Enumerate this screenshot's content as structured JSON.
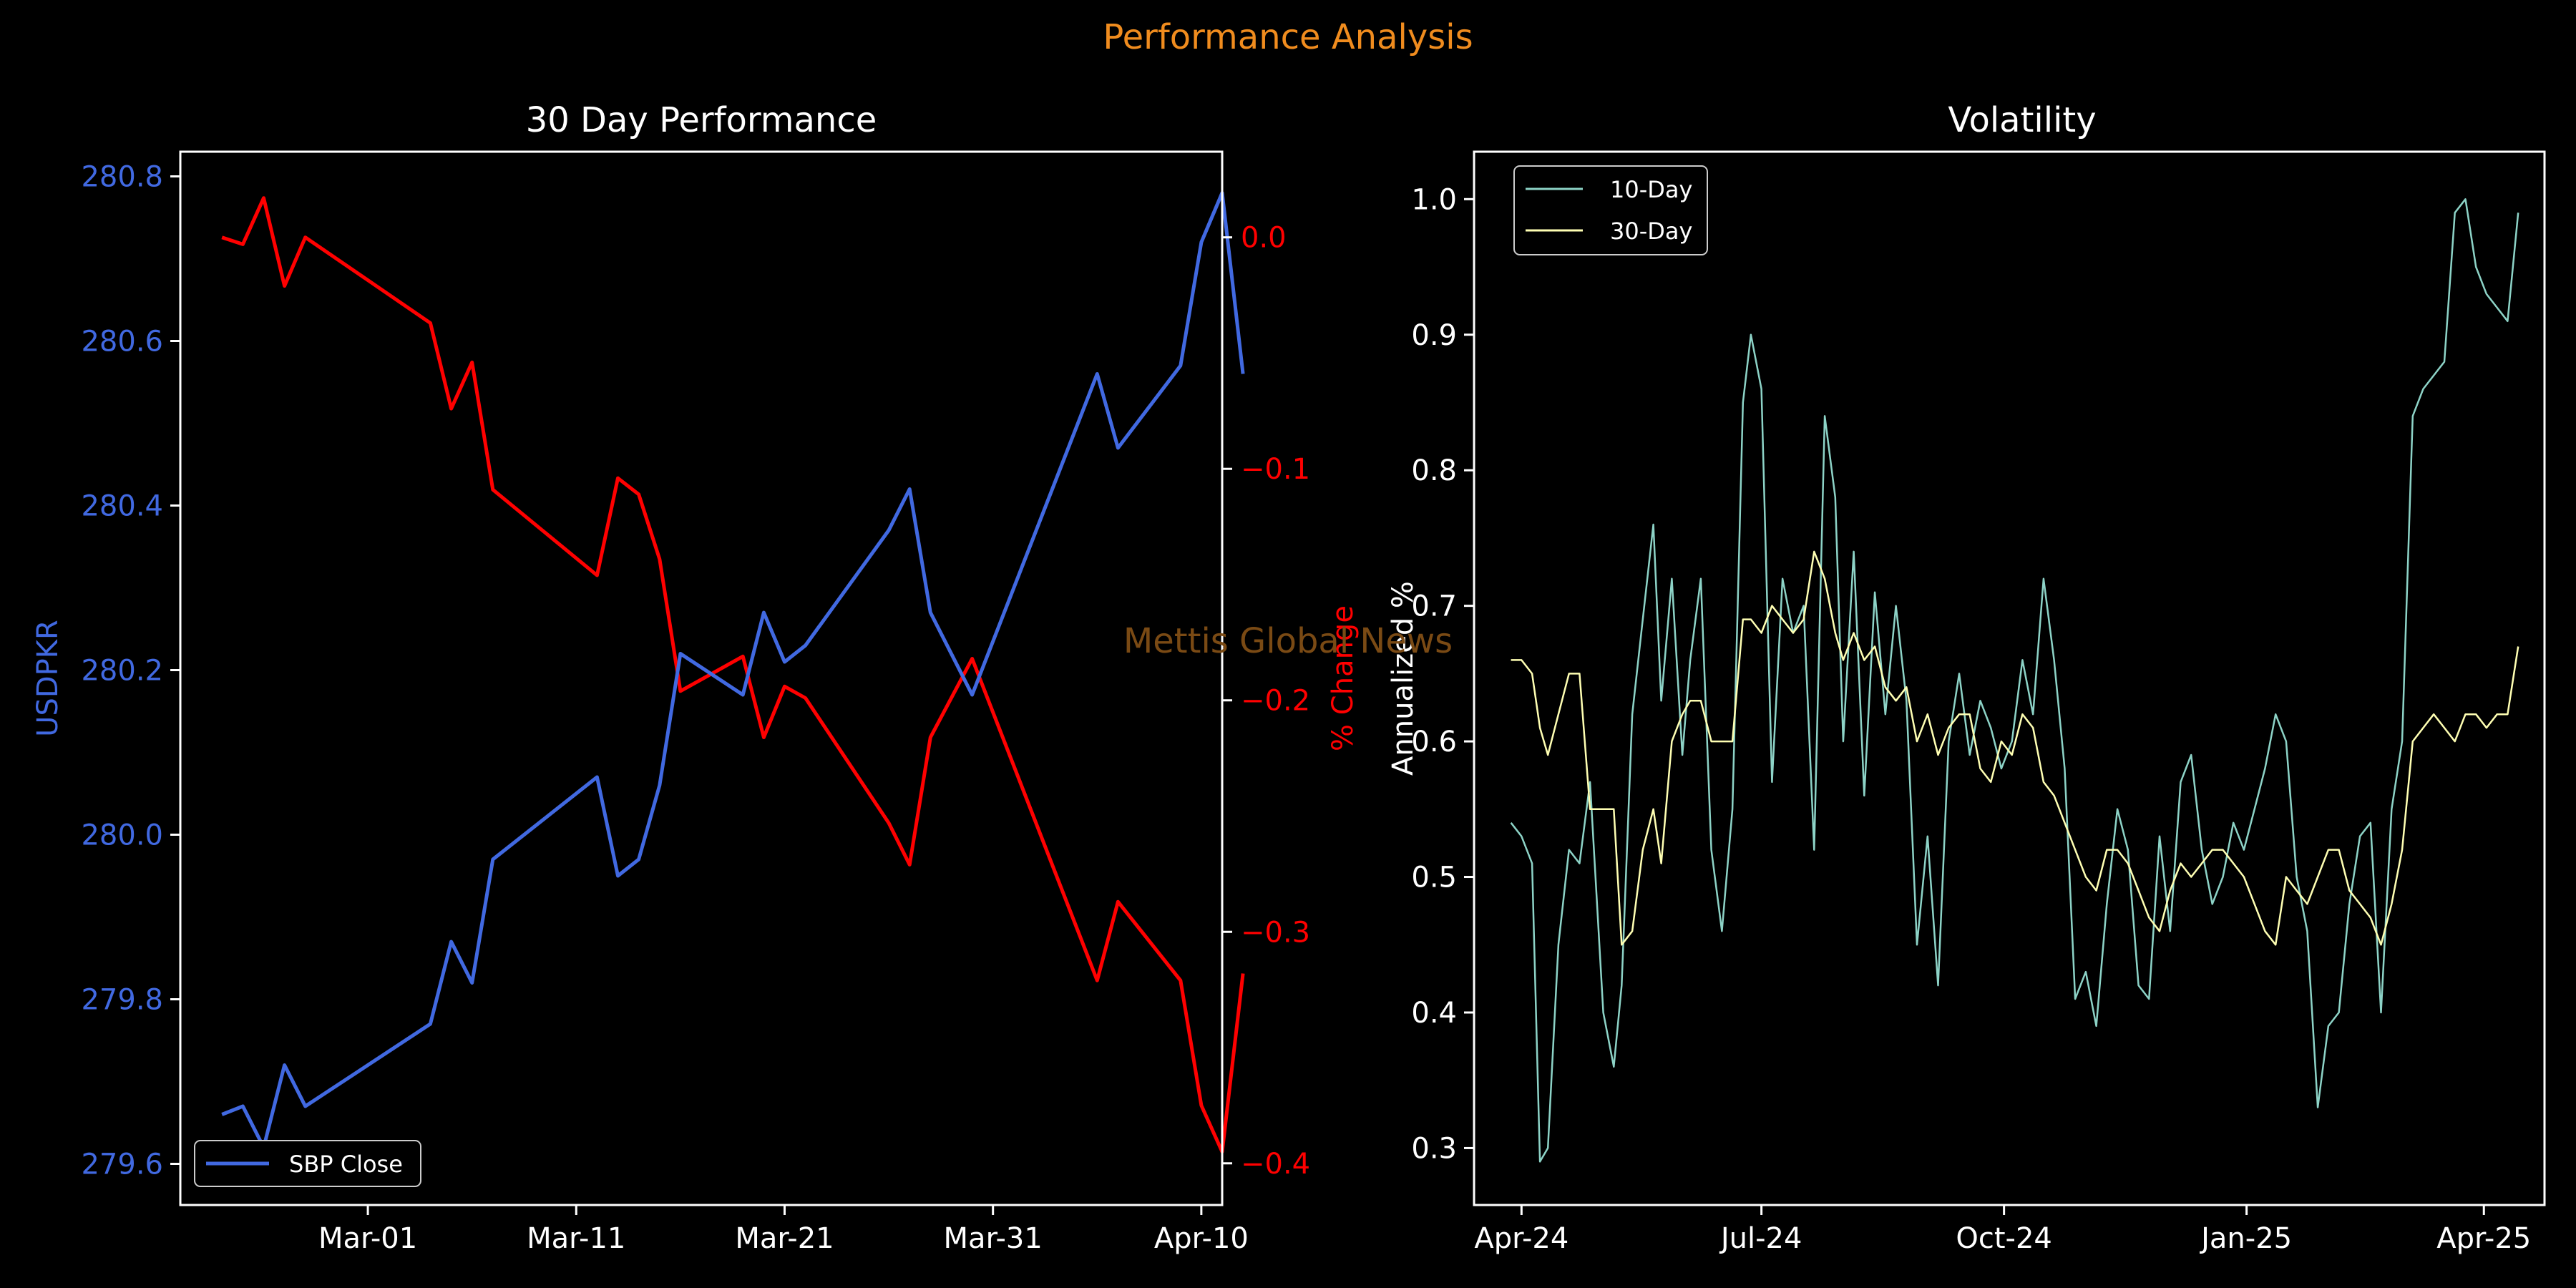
{
  "suptitle": "Performance Analysis",
  "watermark": "Mettis Global News",
  "colors": {
    "background": "#000000",
    "suptitle": "#f08c1e",
    "watermark": "#7a4a14",
    "price": "#4169e1",
    "pct": "#ff0000",
    "vol10": "#8dd3c7",
    "vol30": "#ffffb3",
    "axis": "#ffffff"
  },
  "chart_data": [
    {
      "type": "line",
      "title": "30 Day Performance",
      "ylabel": "USDPKR",
      "ylabel_right": "% Change",
      "ylim": [
        279.55,
        280.83
      ],
      "ylim_right": [
        -0.418,
        0.037
      ],
      "xlim": [
        "2025-02-20",
        "2025-04-11"
      ],
      "x_ticks": [
        "2025-03-01",
        "2025-03-11",
        "2025-03-21",
        "2025-03-31",
        "2025-04-10"
      ],
      "x_tick_labels": [
        "Mar-01",
        "Mar-11",
        "Mar-21",
        "Mar-31",
        "Apr-10"
      ],
      "y_ticks": [
        "279.6",
        "279.8",
        "280.0",
        "280.2",
        "280.4",
        "280.6",
        "280.8"
      ],
      "y_ticks_right": [
        "0.0",
        "−0.1",
        "−0.2",
        "−0.3",
        "−0.4"
      ],
      "legend": "lower-left",
      "series": [
        {
          "name": "SBP Close",
          "axis": "left",
          "x": [
            "2025-02-22",
            "2025-02-23",
            "2025-02-24",
            "2025-02-25",
            "2025-02-26",
            "2025-03-04",
            "2025-03-05",
            "2025-03-06",
            "2025-03-07",
            "2025-03-12",
            "2025-03-13",
            "2025-03-14",
            "2025-03-15",
            "2025-03-16",
            "2025-03-19",
            "2025-03-20",
            "2025-03-21",
            "2025-03-22",
            "2025-03-26",
            "2025-03-27",
            "2025-03-28",
            "2025-03-30",
            "2025-04-05",
            "2025-04-06",
            "2025-04-09",
            "2025-04-10",
            "2025-04-11",
            "2025-04-12"
          ],
          "values": [
            279.66,
            279.67,
            279.62,
            279.72,
            279.67,
            279.77,
            279.87,
            279.82,
            279.97,
            280.07,
            279.95,
            279.97,
            280.06,
            280.22,
            280.17,
            280.27,
            280.21,
            280.23,
            280.37,
            280.42,
            280.27,
            280.17,
            280.56,
            280.47,
            280.57,
            280.72,
            280.78,
            280.56
          ]
        },
        {
          "name": "% Change",
          "axis": "right",
          "x": [
            "2025-02-22",
            "2025-02-23",
            "2025-02-24",
            "2025-02-25",
            "2025-02-26",
            "2025-03-04",
            "2025-03-05",
            "2025-03-06",
            "2025-03-07",
            "2025-03-12",
            "2025-03-13",
            "2025-03-14",
            "2025-03-15",
            "2025-03-16",
            "2025-03-19",
            "2025-03-20",
            "2025-03-21",
            "2025-03-22",
            "2025-03-26",
            "2025-03-27",
            "2025-03-28",
            "2025-03-30",
            "2025-04-05",
            "2025-04-06",
            "2025-04-09",
            "2025-04-10",
            "2025-04-11",
            "2025-04-12"
          ],
          "values": [
            0.0,
            -0.003,
            0.017,
            -0.021,
            0.0,
            -0.037,
            -0.074,
            -0.054,
            -0.109,
            -0.146,
            -0.104,
            -0.111,
            -0.139,
            -0.196,
            -0.181,
            -0.216,
            -0.194,
            -0.199,
            -0.253,
            -0.271,
            -0.216,
            -0.182,
            -0.321,
            -0.287,
            -0.321,
            -0.375,
            -0.395,
            -0.318
          ]
        }
      ]
    },
    {
      "type": "line",
      "title": "Volatility",
      "ylabel": "Annualized %",
      "ylim": [
        0.258,
        1.035
      ],
      "xlim": [
        "2024-03-14",
        "2025-04-24"
      ],
      "x_ticks": [
        "2024-04-01",
        "2024-07-01",
        "2024-10-01",
        "2025-01-01",
        "2025-04-01"
      ],
      "x_tick_labels": [
        "Apr-24",
        "Jul-24",
        "Oct-24",
        "Jan-25",
        "Apr-25"
      ],
      "y_ticks": [
        "0.3",
        "0.4",
        "0.5",
        "0.6",
        "0.7",
        "0.8",
        "0.9",
        "1.0"
      ],
      "legend": "top-left",
      "series": [
        {
          "name": "10-Day",
          "x": [
            "2024-03-28",
            "2024-04-01",
            "2024-04-05",
            "2024-04-08",
            "2024-04-11",
            "2024-04-15",
            "2024-04-19",
            "2024-04-23",
            "2024-04-27",
            "2024-05-02",
            "2024-05-06",
            "2024-05-09",
            "2024-05-13",
            "2024-05-17",
            "2024-05-21",
            "2024-05-24",
            "2024-05-28",
            "2024-06-01",
            "2024-06-04",
            "2024-06-08",
            "2024-06-12",
            "2024-06-16",
            "2024-06-20",
            "2024-06-24",
            "2024-06-27",
            "2024-07-01",
            "2024-07-05",
            "2024-07-09",
            "2024-07-13",
            "2024-07-17",
            "2024-07-21",
            "2024-07-25",
            "2024-07-29",
            "2024-08-01",
            "2024-08-05",
            "2024-08-09",
            "2024-08-13",
            "2024-08-17",
            "2024-08-21",
            "2024-08-25",
            "2024-08-29",
            "2024-09-02",
            "2024-09-06",
            "2024-09-10",
            "2024-09-14",
            "2024-09-18",
            "2024-09-22",
            "2024-09-26",
            "2024-09-30",
            "2024-10-04",
            "2024-10-08",
            "2024-10-12",
            "2024-10-16",
            "2024-10-20",
            "2024-10-24",
            "2024-10-28",
            "2024-11-01",
            "2024-11-05",
            "2024-11-09",
            "2024-11-13",
            "2024-11-17",
            "2024-11-21",
            "2024-11-25",
            "2024-11-29",
            "2024-12-03",
            "2024-12-07",
            "2024-12-11",
            "2024-12-15",
            "2024-12-19",
            "2024-12-23",
            "2024-12-27",
            "2024-12-31",
            "2025-01-04",
            "2025-01-08",
            "2025-01-12",
            "2025-01-16",
            "2025-01-20",
            "2025-01-24",
            "2025-01-28",
            "2025-02-01",
            "2025-02-05",
            "2025-02-09",
            "2025-02-13",
            "2025-02-17",
            "2025-02-21",
            "2025-02-25",
            "2025-03-01",
            "2025-03-05",
            "2025-03-09",
            "2025-03-13",
            "2025-03-17",
            "2025-03-21",
            "2025-03-25",
            "2025-03-29",
            "2025-04-02",
            "2025-04-06",
            "2025-04-10",
            "2025-04-14"
          ],
          "values": [
            0.54,
            0.53,
            0.51,
            0.29,
            0.3,
            0.45,
            0.52,
            0.51,
            0.57,
            0.4,
            0.36,
            0.42,
            0.62,
            0.69,
            0.76,
            0.63,
            0.72,
            0.59,
            0.66,
            0.72,
            0.52,
            0.46,
            0.55,
            0.85,
            0.9,
            0.86,
            0.57,
            0.72,
            0.68,
            0.7,
            0.52,
            0.84,
            0.78,
            0.6,
            0.74,
            0.56,
            0.71,
            0.62,
            0.7,
            0.63,
            0.45,
            0.53,
            0.42,
            0.6,
            0.65,
            0.59,
            0.63,
            0.61,
            0.58,
            0.6,
            0.66,
            0.62,
            0.72,
            0.66,
            0.58,
            0.41,
            0.43,
            0.39,
            0.48,
            0.55,
            0.52,
            0.42,
            0.41,
            0.53,
            0.46,
            0.57,
            0.59,
            0.52,
            0.48,
            0.5,
            0.54,
            0.52,
            0.55,
            0.58,
            0.62,
            0.6,
            0.5,
            0.46,
            0.33,
            0.39,
            0.4,
            0.48,
            0.53,
            0.54,
            0.4,
            0.55,
            0.6,
            0.84,
            0.86,
            0.87,
            0.88,
            0.99,
            1.0,
            0.95,
            0.93,
            0.92,
            0.91,
            0.99
          ]
        },
        {
          "name": "30-Day",
          "x": [
            "2024-03-28",
            "2024-04-01",
            "2024-04-05",
            "2024-04-08",
            "2024-04-11",
            "2024-04-15",
            "2024-04-19",
            "2024-04-23",
            "2024-04-27",
            "2024-05-02",
            "2024-05-06",
            "2024-05-09",
            "2024-05-13",
            "2024-05-17",
            "2024-05-21",
            "2024-05-24",
            "2024-05-28",
            "2024-06-01",
            "2024-06-04",
            "2024-06-08",
            "2024-06-12",
            "2024-06-16",
            "2024-06-20",
            "2024-06-24",
            "2024-06-27",
            "2024-07-01",
            "2024-07-05",
            "2024-07-09",
            "2024-07-13",
            "2024-07-17",
            "2024-07-21",
            "2024-07-25",
            "2024-07-29",
            "2024-08-01",
            "2024-08-05",
            "2024-08-09",
            "2024-08-13",
            "2024-08-17",
            "2024-08-21",
            "2024-08-25",
            "2024-08-29",
            "2024-09-02",
            "2024-09-06",
            "2024-09-10",
            "2024-09-14",
            "2024-09-18",
            "2024-09-22",
            "2024-09-26",
            "2024-09-30",
            "2024-10-04",
            "2024-10-08",
            "2024-10-12",
            "2024-10-16",
            "2024-10-20",
            "2024-10-24",
            "2024-10-28",
            "2024-11-01",
            "2024-11-05",
            "2024-11-09",
            "2024-11-13",
            "2024-11-17",
            "2024-11-21",
            "2024-11-25",
            "2024-11-29",
            "2024-12-03",
            "2024-12-07",
            "2024-12-11",
            "2024-12-15",
            "2024-12-19",
            "2024-12-23",
            "2024-12-27",
            "2024-12-31",
            "2025-01-04",
            "2025-01-08",
            "2025-01-12",
            "2025-01-16",
            "2025-01-20",
            "2025-01-24",
            "2025-01-28",
            "2025-02-01",
            "2025-02-05",
            "2025-02-09",
            "2025-02-13",
            "2025-02-17",
            "2025-02-21",
            "2025-02-25",
            "2025-03-01",
            "2025-03-05",
            "2025-03-09",
            "2025-03-13",
            "2025-03-17",
            "2025-03-21",
            "2025-03-25",
            "2025-03-29",
            "2025-04-02",
            "2025-04-06",
            "2025-04-10",
            "2025-04-14"
          ],
          "values": [
            0.66,
            0.66,
            0.65,
            0.61,
            0.59,
            0.62,
            0.65,
            0.65,
            0.55,
            0.55,
            0.55,
            0.45,
            0.46,
            0.52,
            0.55,
            0.51,
            0.6,
            0.62,
            0.63,
            0.63,
            0.6,
            0.6,
            0.6,
            0.69,
            0.69,
            0.68,
            0.7,
            0.69,
            0.68,
            0.69,
            0.74,
            0.72,
            0.68,
            0.66,
            0.68,
            0.66,
            0.67,
            0.64,
            0.63,
            0.64,
            0.6,
            0.62,
            0.59,
            0.61,
            0.62,
            0.62,
            0.58,
            0.57,
            0.6,
            0.59,
            0.62,
            0.61,
            0.57,
            0.56,
            0.54,
            0.52,
            0.5,
            0.49,
            0.52,
            0.52,
            0.51,
            0.49,
            0.47,
            0.46,
            0.49,
            0.51,
            0.5,
            0.51,
            0.52,
            0.52,
            0.51,
            0.5,
            0.48,
            0.46,
            0.45,
            0.5,
            0.49,
            0.48,
            0.5,
            0.52,
            0.52,
            0.49,
            0.48,
            0.47,
            0.45,
            0.48,
            0.52,
            0.6,
            0.61,
            0.62,
            0.61,
            0.6,
            0.62,
            0.62,
            0.61,
            0.62,
            0.62,
            0.67
          ]
        }
      ]
    }
  ]
}
